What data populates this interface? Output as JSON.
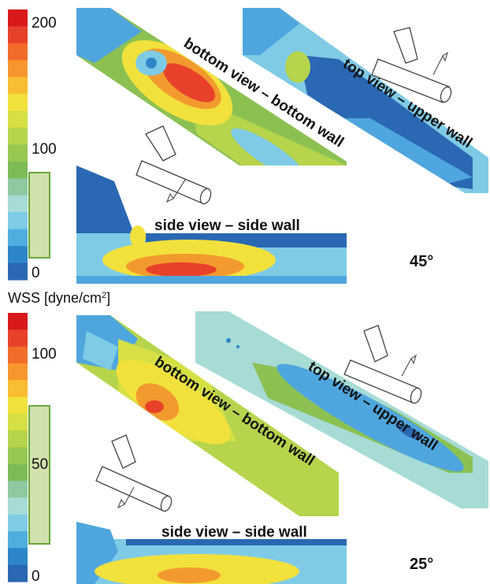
{
  "figure": {
    "panels": [
      {
        "angle": "45°",
        "scale_ticks": [
          "200",
          "100",
          "0"
        ],
        "scale_min": 0,
        "scale_max": 200,
        "highlight_range": [
          0,
          70
        ],
        "bottom_label": "bottom view – bottom wall",
        "top_label": "top view – upper wall",
        "side_label": "side view – side wall"
      },
      {
        "angle": "25°",
        "scale_ticks": [
          "100",
          "50",
          "0"
        ],
        "scale_min": 0,
        "scale_max": 125,
        "highlight_range": [
          0,
          43
        ],
        "bottom_label": "bottom view – bottom wall",
        "top_label": "top view – upper wall",
        "side_label": "side view – side wall"
      }
    ],
    "unit_prefix": "WSS [dyne/cm",
    "unit_sup": "2",
    "unit_suffix": "]",
    "colormap": [
      "#d7191c",
      "#e8412a",
      "#f26b2a",
      "#f7962e",
      "#f8bd33",
      "#f2e13c",
      "#d6e045",
      "#b6d54c",
      "#98c84f",
      "#7dbc55",
      "#8ec9a1",
      "#a6dbd6",
      "#7fcbe6",
      "#4faede",
      "#2e86c8",
      "#2a68b3"
    ],
    "colors": {
      "blue": "#2a68b3",
      "cyan": "#7fcbe6",
      "green": "#8cc152",
      "yellow": "#f2e13c",
      "orange": "#f39a2e",
      "red": "#d7191c",
      "highlight": "#c9dca0"
    }
  }
}
